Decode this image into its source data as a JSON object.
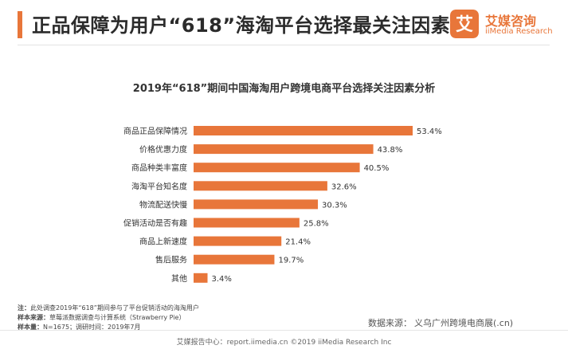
{
  "header": {
    "title": "正品保障为用户“618”海淘平台选择最关注因素",
    "accent_color": "#E8763A"
  },
  "logo": {
    "glyph": "艾",
    "name": "艾媒咨询",
    "sub": "iiMedia Research",
    "color": "#E8763A"
  },
  "chart_data": {
    "type": "bar",
    "orientation": "horizontal",
    "title": "2019年“618”期间中国海淘用户跨境电商平台选择关注因素分析",
    "categories": [
      "商品正品保障情况",
      "价格优惠力度",
      "商品种类丰富度",
      "海淘平台知名度",
      "物流配送快慢",
      "促销活动是否有趣",
      "商品上新速度",
      "售后服务",
      "其他"
    ],
    "values": [
      53.4,
      43.8,
      40.5,
      32.6,
      30.3,
      25.8,
      21.4,
      19.7,
      3.4
    ],
    "unit": "%",
    "bar_color": "#E8763A",
    "grid": false,
    "legend": "none"
  },
  "notes": [
    {
      "label": "注：",
      "text": "此处调查2019年“618”期间参与了平台促销活动的海淘用户"
    },
    {
      "label": "样本来源：",
      "text": "草莓派数据调查与计算系统（Strawberry Pie）"
    },
    {
      "label": "样本量：",
      "text": "N=1675；调研时间：2019年7月"
    }
  ],
  "source": "数据来源：",
  "watermark": "义乌广州跨境电商展(.cn)",
  "footer": "艾媒报告中心：report.iimedia.cn ©2019 iiMedia Research Inc"
}
